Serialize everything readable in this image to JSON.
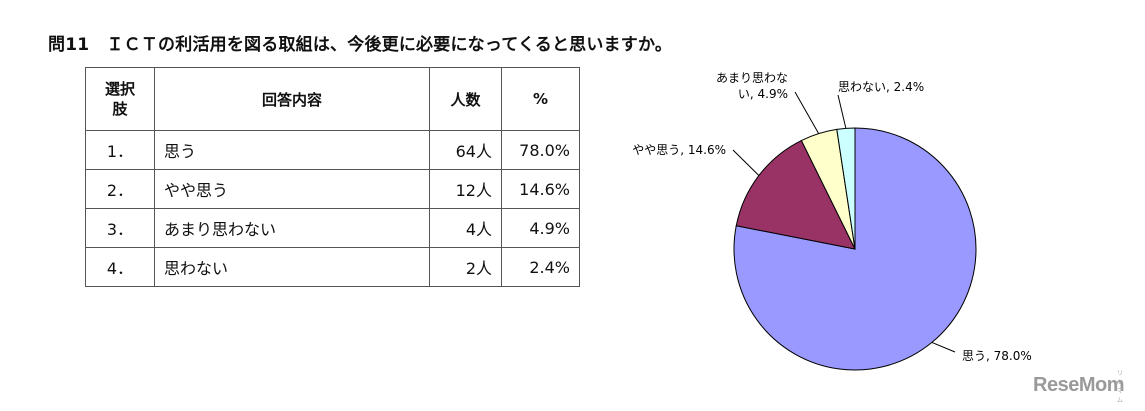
{
  "title": "問11　ＩＣＴの利活用を図る取組は、今後更に必要になってくると思いますか。",
  "table": {
    "headers": {
      "choice": "選択\n肢",
      "content": "回答内容",
      "count": "人数",
      "percent": "%"
    },
    "rows": [
      {
        "choice": "1．",
        "content": "思う",
        "count": "64人",
        "percent": "78.0%"
      },
      {
        "choice": "2．",
        "content": "やや思う",
        "count": "12人",
        "percent": "14.6%"
      },
      {
        "choice": "3．",
        "content": "あまり思わない",
        "count": "4人",
        "percent": "4.9%"
      },
      {
        "choice": "4．",
        "content": "思わない",
        "count": "2人",
        "percent": "2.4%"
      }
    ]
  },
  "chart_data": {
    "type": "pie",
    "start": "12 o'clock, clockwise",
    "slices": [
      {
        "label": "思う",
        "value": 78.0,
        "label_text": "思う, 78.0%",
        "color": "#9999ff"
      },
      {
        "label": "やや思う",
        "value": 14.6,
        "label_text": "やや思う, 14.6%",
        "color": "#993366"
      },
      {
        "label": "あまり思わない",
        "value": 4.9,
        "label_lines": [
          "あまり思わな",
          "い, 4.9%"
        ],
        "color": "#ffffcc"
      },
      {
        "label": "思わない",
        "value": 2.4,
        "label_text": "思わない, 2.4%",
        "color": "#ccffff"
      }
    ]
  },
  "watermark": {
    "brand": "ReseMom",
    "sub": "リセマム"
  }
}
